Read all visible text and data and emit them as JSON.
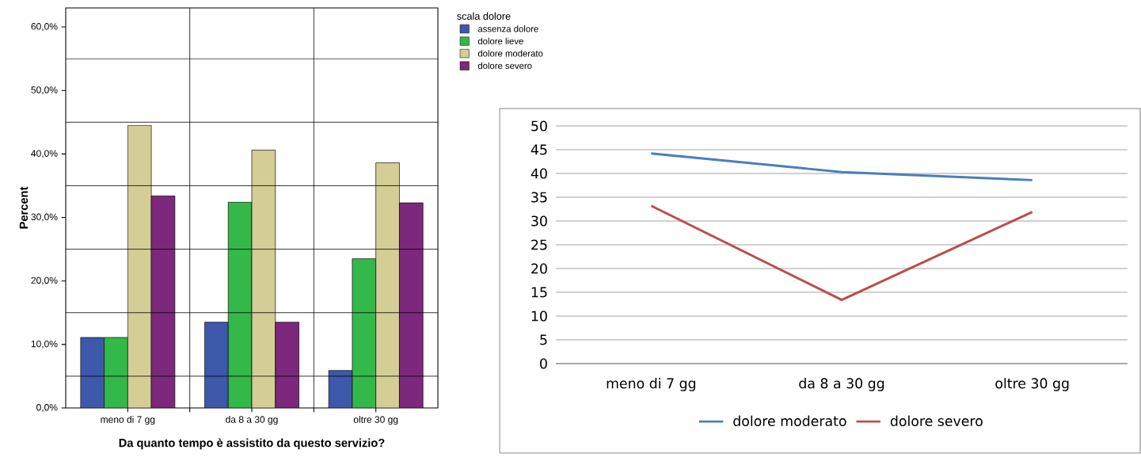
{
  "chart_data": [
    {
      "type": "bar",
      "xlabel": "Da quanto tempo è assistito da questo servizio?",
      "ylabel": "Percent",
      "legend_title": "scala dolore",
      "legend": "top right",
      "categories": [
        "meno di 7 gg",
        "da 8 a 30 gg",
        "oltre 30 gg"
      ],
      "series": [
        {
          "name": "assenza dolore",
          "color": "#3e58ac",
          "values": [
            11.1,
            13.5,
            5.9
          ]
        },
        {
          "name": "dolore lieve",
          "color": "#33b94a",
          "values": [
            11.1,
            32.4,
            23.5
          ]
        },
        {
          "name": "dolore moderato",
          "color": "#d4ce96",
          "values": [
            44.5,
            40.6,
            38.6
          ]
        },
        {
          "name": "dolore severo",
          "color": "#7c287c",
          "values": [
            33.4,
            13.5,
            32.3
          ]
        }
      ],
      "ylim": [
        0,
        63
      ],
      "yticks": [
        {
          "value": 0,
          "label": "0,0%"
        },
        {
          "value": 10,
          "label": "10,0%"
        },
        {
          "value": 20,
          "label": "20,0%"
        },
        {
          "value": 30,
          "label": "30,0%"
        },
        {
          "value": 40,
          "label": "40,0%"
        },
        {
          "value": 50,
          "label": "50,0%"
        },
        {
          "value": 60,
          "label": "60,0%"
        }
      ],
      "ref_lines": [
        {
          "axis": "y",
          "value": 5
        },
        {
          "axis": "y",
          "value": 15
        },
        {
          "axis": "y",
          "value": 25
        },
        {
          "axis": "y",
          "value": 35
        },
        {
          "axis": "y",
          "value": 45
        },
        {
          "axis": "y",
          "value": 55
        }
      ]
    },
    {
      "type": "line",
      "legend": "bottom",
      "grid": "y",
      "marker": "none",
      "line_style": "solid",
      "categories": [
        "meno di 7 gg",
        "da 8 a 30 gg",
        "oltre 30 gg"
      ],
      "series": [
        {
          "name": "dolore moderato",
          "color": "#4a7ebb",
          "values": [
            44.2,
            40.3,
            38.6
          ]
        },
        {
          "name": "dolore severo",
          "color": "#be4b48",
          "values": [
            33.2,
            13.4,
            31.9
          ]
        }
      ],
      "ylim": [
        0,
        50
      ],
      "yticks": [
        0,
        5,
        10,
        15,
        20,
        25,
        30,
        35,
        40,
        45,
        50
      ]
    }
  ]
}
